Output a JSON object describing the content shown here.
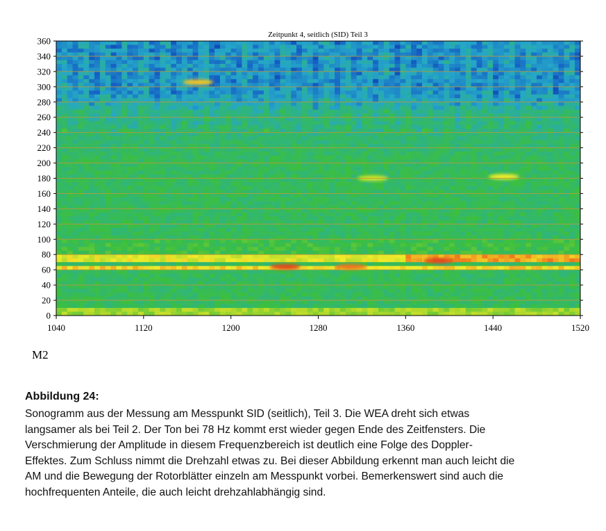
{
  "chart_data": {
    "type": "heatmap",
    "title": "Zeitpunkt 4, seitlich (SID) Teil 3",
    "xlabel": "",
    "ylabel": "",
    "xlim": [
      1040,
      1520
    ],
    "ylim": [
      0,
      360
    ],
    "x_ticks": [
      "1040",
      "1120",
      "1200",
      "1280",
      "1360",
      "1440",
      "1520"
    ],
    "y_ticks": [
      "0",
      "20",
      "40",
      "60",
      "80",
      "100",
      "120",
      "140",
      "160",
      "180",
      "200",
      "220",
      "240",
      "260",
      "280",
      "300",
      "320",
      "340",
      "360"
    ],
    "y_gridlines": [
      20,
      40,
      60,
      80,
      100,
      120,
      140,
      160,
      180,
      200,
      220,
      240,
      260,
      280,
      300,
      320,
      340
    ],
    "grid": true,
    "colormap": [
      "#08208e",
      "#1560c4",
      "#25a6c9",
      "#2fb57c",
      "#3cbf3f",
      "#a5d62d",
      "#f0ec2a",
      "#f08a1e",
      "#d42020"
    ],
    "bands": [
      {
        "y_from": 0,
        "y_to": 12,
        "level": 0.62
      },
      {
        "y_from": 60,
        "y_to": 66,
        "level": 0.78
      },
      {
        "y_from": 72,
        "y_to": 80,
        "level": 0.72
      },
      {
        "y_from": 80,
        "y_to": 100,
        "level": 0.48
      },
      {
        "y_from": 270,
        "y_to": 360,
        "level": 0.22
      }
    ],
    "hotspots": [
      {
        "x": 1250,
        "y": 64,
        "level": 0.95
      },
      {
        "x": 1310,
        "y": 64,
        "level": 0.9
      },
      {
        "x": 1390,
        "y": 72,
        "level": 0.95
      },
      {
        "x": 1170,
        "y": 306,
        "level": 0.8
      },
      {
        "x": 1450,
        "y": 182,
        "level": 0.75
      },
      {
        "x": 1330,
        "y": 180,
        "level": 0.7
      }
    ]
  },
  "side_label": "M2",
  "caption": {
    "title": "Abbildung 24:",
    "lines": [
      "Sonogramm aus der Messung am Messpunkt SID (seitlich), Teil 3. Die WEA dreht sich etwas",
      "langsamer als bei Teil 2. Der Ton bei 78 Hz kommt erst wieder gegen Ende des Zeitfensters. Die",
      "Verschmierung der Amplitude in diesem Frequenzbereich ist deutlich eine Folge des Doppler-",
      "Effektes. Zum Schluss nimmt die Drehzahl etwas zu. Bei dieser Abbildung erkennt man auch leicht die",
      "AM und die Bewegung der Rotorblätter einzeln am Messpunkt vorbei. Bemerkenswert sind auch die",
      "hochfrequenten Anteile, die auch leicht drehzahlabhängig sind."
    ]
  }
}
